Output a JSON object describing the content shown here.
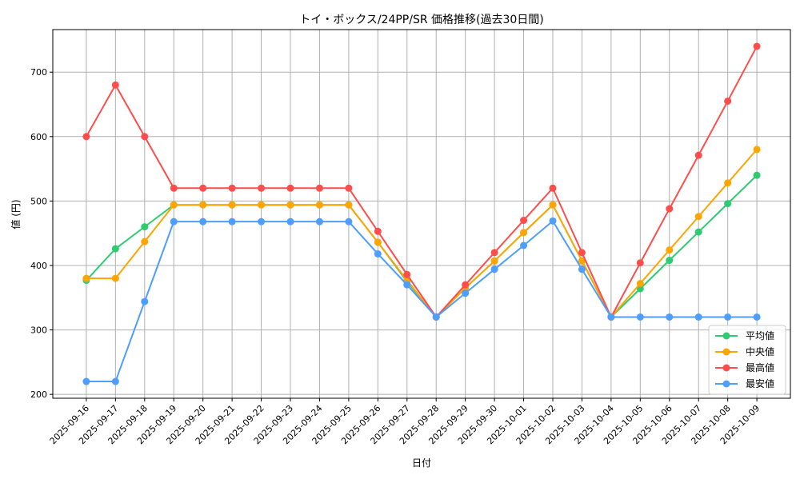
{
  "chart_data": {
    "type": "line",
    "title": "トイ・ボックス/24PP/SR 価格推移(過去30日間)",
    "xlabel": "日付",
    "ylabel": "値 (円)",
    "ylim": [
      194,
      766
    ],
    "yticks": [
      200,
      300,
      400,
      500,
      600,
      700
    ],
    "grid": true,
    "legend_position": "bottom-right",
    "x": [
      "2025-09-16",
      "2025-09-17",
      "2025-09-18",
      "2025-09-19",
      "2025-09-20",
      "2025-09-21",
      "2025-09-22",
      "2025-09-23",
      "2025-09-24",
      "2025-09-25",
      "2025-09-26",
      "2025-09-27",
      "2025-09-28",
      "2025-09-29",
      "2025-09-30",
      "2025-10-01",
      "2025-10-02",
      "2025-10-03",
      "2025-10-04",
      "2025-10-05",
      "2025-10-06",
      "2025-10-07",
      "2025-10-08",
      "2025-10-09"
    ],
    "series": [
      {
        "name": "平均値",
        "color": "#2ecc71",
        "values": [
          377,
          426,
          460,
          494,
          494,
          494,
          494,
          494,
          494,
          494,
          436,
          375,
          320,
          365,
          407,
          451,
          494,
          407,
          320,
          364,
          408,
          452,
          496,
          540
        ]
      },
      {
        "name": "中央値",
        "color": "#ffa500",
        "values": [
          380,
          380,
          437,
          494,
          494,
          494,
          494,
          494,
          494,
          494,
          436,
          377,
          320,
          365,
          407,
          451,
          494,
          407,
          320,
          372,
          424,
          476,
          528,
          580
        ]
      },
      {
        "name": "最高値",
        "color": "#ff4d4d",
        "values": [
          600,
          680,
          600,
          520,
          520,
          520,
          520,
          520,
          520,
          520,
          453,
          386,
          320,
          370,
          420,
          470,
          520,
          420,
          320,
          404,
          488,
          571,
          655,
          740
        ]
      },
      {
        "name": "最安値",
        "color": "#4d9eff",
        "values": [
          220,
          220,
          344,
          468,
          468,
          468,
          468,
          468,
          468,
          468,
          418,
          370,
          320,
          357,
          394,
          431,
          469,
          394,
          320,
          320,
          320,
          320,
          320,
          320
        ]
      }
    ]
  }
}
